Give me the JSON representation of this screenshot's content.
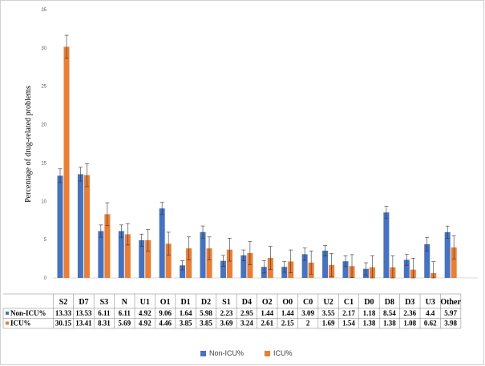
{
  "chart_data": {
    "type": "bar",
    "title": "",
    "ylabel": "Percentage of drug-related problems",
    "xlabel": "",
    "ylim": [
      0,
      35
    ],
    "yticks": [
      0,
      5,
      10,
      15,
      20,
      25,
      30,
      35
    ],
    "grid": false,
    "legend": "bottom",
    "categories": [
      "S2",
      "D7",
      "S3",
      "N",
      "U1",
      "O1",
      "D1",
      "D2",
      "S1",
      "D4",
      "O2",
      "O0",
      "C0",
      "U2",
      "C1",
      "D0",
      "D8",
      "D3",
      "U3",
      "Other"
    ],
    "series": [
      {
        "name": "Non-ICU%",
        "color": "#4472c4",
        "values": [
          13.33,
          13.53,
          6.11,
          6.11,
          4.92,
          9.06,
          1.64,
          5.98,
          2.23,
          2.95,
          1.44,
          1.44,
          3.09,
          3.55,
          2.17,
          1.18,
          8.54,
          2.36,
          4.4,
          5.97
        ],
        "value_labels": [
          "13.33",
          "13.53",
          "6.11",
          "6.11",
          "4.92",
          "9.06",
          "1.64",
          "5.98",
          "2.23",
          "2.95",
          "1.44",
          "1.44",
          "3.09",
          "3.55",
          "2.17",
          "1.18",
          "8.54",
          "2.36",
          "4.4",
          "5.97"
        ],
        "errors": [
          0.9,
          0.9,
          0.8,
          0.8,
          0.8,
          0.8,
          0.6,
          0.8,
          0.7,
          0.7,
          0.8,
          0.7,
          0.8,
          0.7,
          0.7,
          0.8,
          0.8,
          0.7,
          0.9,
          0.8
        ]
      },
      {
        "name": "ICU%",
        "color": "#ed7d31",
        "values": [
          30.15,
          13.41,
          8.31,
          5.69,
          4.92,
          4.46,
          3.85,
          3.85,
          3.69,
          3.24,
          2.61,
          2.15,
          2,
          1.69,
          1.54,
          1.38,
          1.38,
          1.08,
          0.62,
          3.98
        ],
        "value_labels": [
          "30.15",
          "13.41",
          "8.31",
          "5.69",
          "4.92",
          "4.46",
          "3.85",
          "3.85",
          "3.69",
          "3.24",
          "2.61",
          "2.15",
          "2",
          "1.69",
          "1.54",
          "1.38",
          "1.38",
          "1.08",
          "0.62",
          "3.98"
        ],
        "errors": [
          1.5,
          1.5,
          1.5,
          1.4,
          1.4,
          1.5,
          1.5,
          1.5,
          1.5,
          1.5,
          1.5,
          1.5,
          1.5,
          1.5,
          1.5,
          1.5,
          1.5,
          1.5,
          1.5,
          1.5
        ]
      }
    ]
  }
}
